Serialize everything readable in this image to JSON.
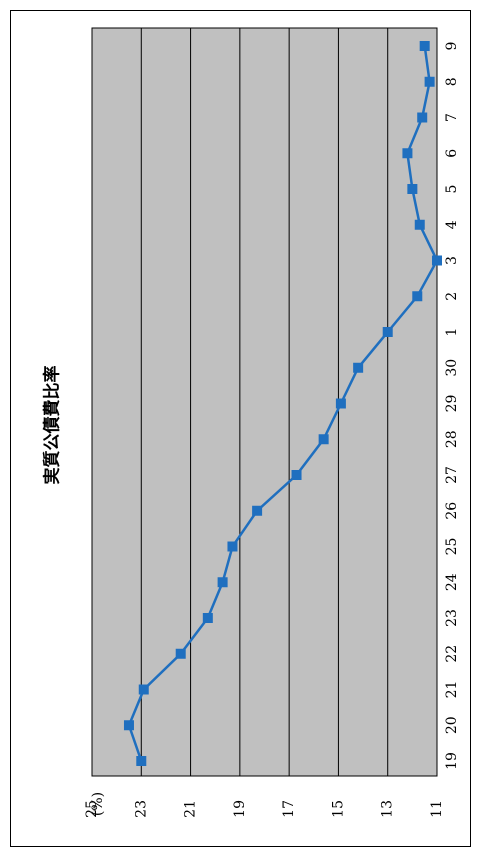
{
  "chart_data": {
    "type": "line",
    "title": "実質公債費比率",
    "ylabel": "(%)",
    "xlabel": "",
    "categories": [
      "19",
      "20",
      "21",
      "22",
      "23",
      "24",
      "25",
      "26",
      "27",
      "28",
      "29",
      "30",
      "1",
      "2",
      "3",
      "4",
      "5",
      "6",
      "7",
      "8",
      "9"
    ],
    "series": [
      {
        "values": [
          23.0,
          23.5,
          22.9,
          21.4,
          20.3,
          19.7,
          19.3,
          18.3,
          16.7,
          15.6,
          14.9,
          14.2,
          13.0,
          11.8,
          11.0,
          11.7,
          12.0,
          12.2,
          11.6,
          11.3,
          11.5
        ],
        "color": "#1F6FBF"
      }
    ],
    "ylim": [
      11,
      25
    ],
    "yticks": [
      "25",
      "23",
      "21",
      "19",
      "17",
      "15",
      "13",
      "11"
    ],
    "grid": true,
    "plot_background": "#C0C0C0",
    "orientation": "rotated 90 degrees counter-clockwise"
  }
}
